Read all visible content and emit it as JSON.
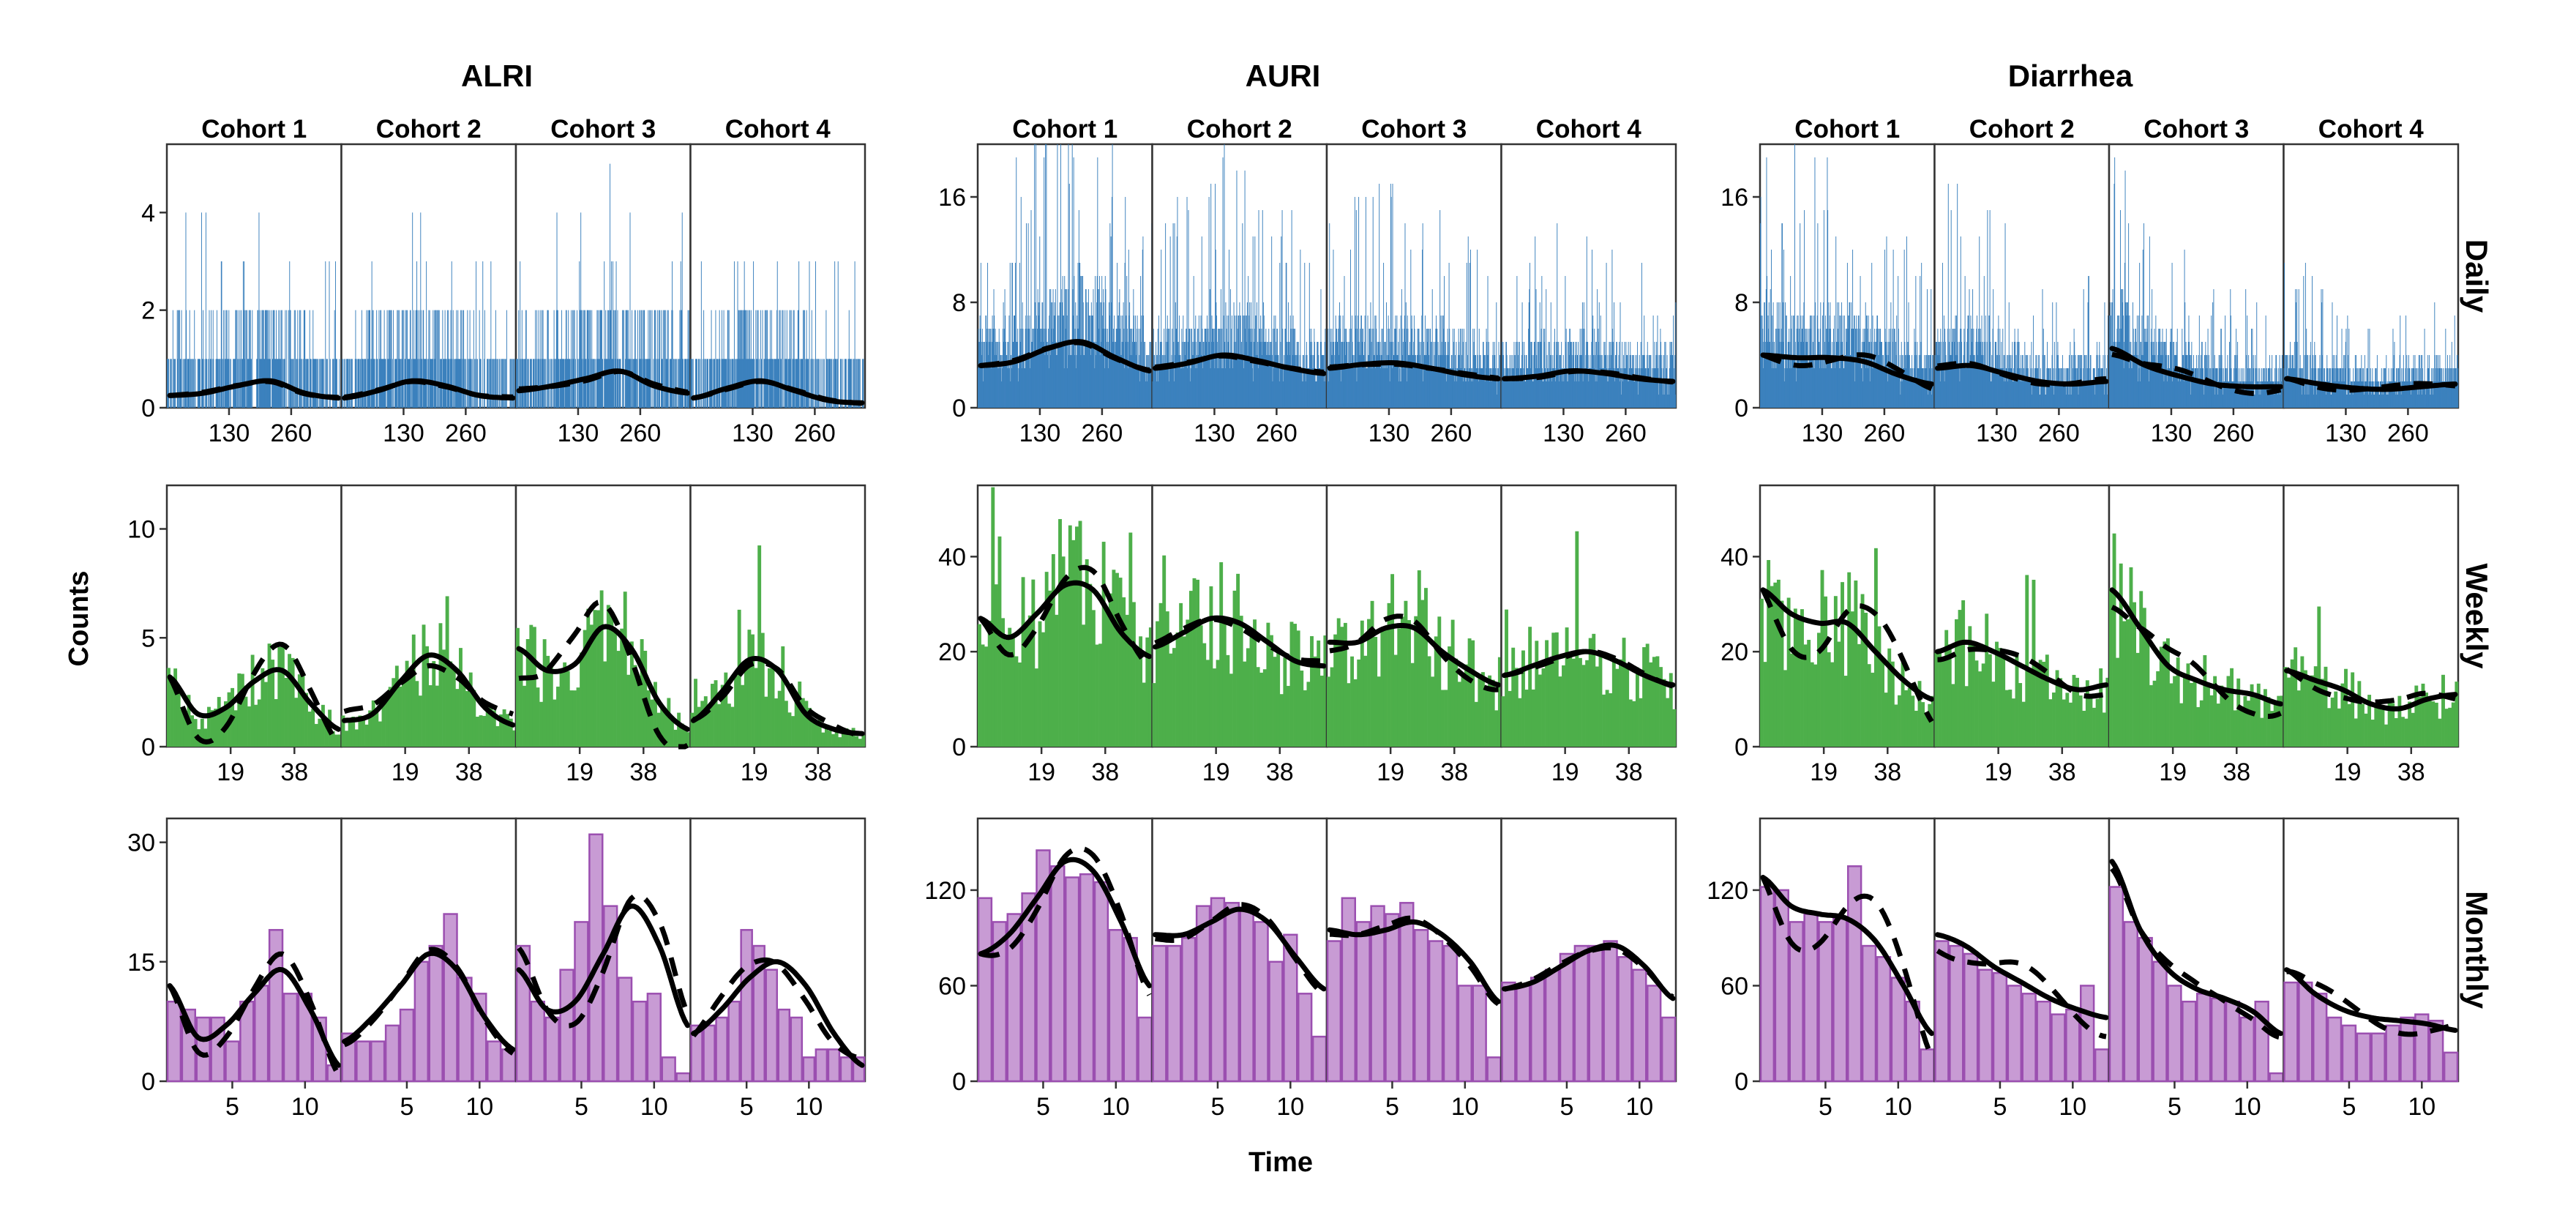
{
  "chart_data": {
    "type": "bar",
    "ylabel": "Counts",
    "xlabel": "Time",
    "outcomes": [
      "ALRI",
      "AURI",
      "Diarrhea"
    ],
    "cohorts": [
      "Cohort 1",
      "Cohort 2",
      "Cohort 3",
      "Cohort 4"
    ],
    "resolutions": [
      "Daily",
      "Weekly",
      "Monthly"
    ],
    "colors": {
      "Daily": "#3a80bd",
      "Weekly": "#4daf4a",
      "Monthly": "#c89bd4",
      "Monthly_edge": "#9b4fb0"
    },
    "legend": "none",
    "grid": false,
    "rows": {
      "Daily": {
        "x_ticks": [
          130,
          260
        ],
        "n_bins": 365,
        "y_ticks": {
          "ALRI": [
            0,
            2,
            4
          ],
          "AURI": [
            0,
            8,
            16
          ],
          "Diarrhea": [
            0,
            8,
            16
          ]
        },
        "ylim": {
          "ALRI": [
            0,
            5.4
          ],
          "AURI": [
            0,
            20
          ],
          "Diarrhea": [
            0,
            20
          ]
        },
        "level_knots": {
          "ALRI": [
            [
              0.25,
              0.3,
              0.45,
              0.55,
              0.3,
              0.2
            ],
            [
              0.2,
              0.35,
              0.55,
              0.45,
              0.25,
              0.2
            ],
            [
              0.35,
              0.45,
              0.6,
              0.75,
              0.45,
              0.3
            ],
            [
              0.2,
              0.4,
              0.55,
              0.35,
              0.15,
              0.1
            ]
          ],
          "AURI": [
            [
              3.2,
              3.5,
              4.5,
              5.0,
              3.8,
              2.8
            ],
            [
              3.0,
              3.4,
              4.0,
              3.6,
              3.0,
              2.6
            ],
            [
              3.0,
              3.3,
              3.4,
              3.0,
              2.5,
              2.2
            ],
            [
              2.2,
              2.4,
              2.8,
              2.6,
              2.2,
              2.0
            ]
          ],
          "Diarrhea": [
            [
              4.0,
              3.8,
              3.8,
              3.5,
              2.5,
              1.8
            ],
            [
              3.0,
              3.2,
              2.6,
              2.0,
              1.8,
              2.0
            ],
            [
              4.5,
              3.2,
              2.4,
              1.8,
              1.6,
              1.6
            ],
            [
              2.2,
              1.8,
              1.5,
              1.4,
              1.6,
              1.8
            ]
          ]
        },
        "dash_offsets": {
          "ALRI": [
            0.02,
            0.02,
            0.04,
            0.02
          ],
          "AURI": [
            0.1,
            0.1,
            0.1,
            0.1
          ],
          "Diarrhea": [
            -0.6,
            0.2,
            -0.5,
            0.3
          ]
        }
      },
      "Weekly": {
        "x_ticks": [
          19,
          38
        ],
        "n_bins": 52,
        "y_ticks": {
          "ALRI": [
            0,
            5,
            10
          ],
          "AURI": [
            0,
            20,
            40
          ],
          "Diarrhea": [
            0,
            20,
            40
          ]
        },
        "ylim": {
          "ALRI": [
            0,
            12
          ],
          "AURI": [
            0,
            55
          ],
          "Diarrhea": [
            0,
            55
          ]
        },
        "level_knots": {
          "ALRI": [
            [
              3.2,
              1.5,
              1.8,
              3.0,
              3.5,
              2.0,
              0.8
            ],
            [
              1.2,
              1.5,
              3.0,
              4.2,
              3.5,
              1.8,
              1.0
            ],
            [
              4.5,
              3.5,
              3.8,
              5.5,
              4.5,
              2.0,
              0.8
            ],
            [
              1.2,
              2.5,
              4.0,
              3.5,
              1.5,
              0.8,
              0.6
            ]
          ],
          "AURI": [
            [
              27,
              23,
              28,
              34,
              33,
              24,
              19
            ],
            [
              21,
              24,
              27,
              26,
              22,
              18,
              17
            ],
            [
              22,
              22,
              25,
              25,
              20,
              16,
              13
            ],
            [
              15,
              17,
              19,
              20,
              18,
              15,
              13
            ]
          ],
          "Diarrhea": [
            [
              33,
              28,
              26,
              26,
              20,
              14,
              10
            ],
            [
              20,
              22,
              20,
              17,
              14,
              12,
              13
            ],
            [
              33,
              25,
              17,
              14,
              12,
              11,
              9
            ],
            [
              16,
              14,
              12,
              9,
              8,
              10,
              11
            ]
          ]
        },
        "dash_offsets": {
          "ALRI": [
            -1.2,
            0.5,
            -1.5,
            0.3
          ],
          "AURI": [
            -4,
            1,
            -2,
            0.5
          ],
          "Diarrhea": [
            -8,
            -2,
            -4,
            2
          ]
        }
      },
      "Monthly": {
        "x_ticks": [
          5,
          10
        ],
        "n_bins": 12,
        "y_ticks": {
          "ALRI": [
            0,
            15,
            30
          ],
          "AURI": [
            0,
            60,
            120
          ],
          "Diarrhea": [
            0,
            60,
            120
          ]
        },
        "ylim": {
          "ALRI": [
            0,
            33
          ],
          "AURI": [
            0,
            165
          ],
          "Diarrhea": [
            0,
            165
          ]
        },
        "cohort_bins": {
          "ALRI": [
            12,
            12,
            12,
            14
          ],
          "AURI": [
            12,
            12,
            12,
            12
          ],
          "Diarrhea": [
            12,
            12,
            12,
            12
          ]
        },
        "values": {
          "ALRI": [
            [
              10,
              9,
              8,
              8,
              5,
              10,
              12,
              19,
              11,
              11,
              8,
              2
            ],
            [
              6,
              5,
              5,
              7,
              9,
              15,
              17,
              21,
              13,
              11,
              5,
              4
            ],
            [
              17,
              10,
              8,
              14,
              20,
              31,
              22,
              13,
              10,
              11,
              3,
              1
            ],
            [
              7,
              7,
              8,
              10,
              19,
              17,
              14,
              9,
              8,
              3,
              4,
              4,
              3,
              3
            ]
          ],
          "AURI": [
            [
              115,
              100,
              105,
              118,
              145,
              135,
              128,
              130,
              125,
              95,
              90,
              40
            ],
            [
              85,
              85,
              90,
              110,
              115,
              112,
              108,
              100,
              75,
              92,
              55,
              28
            ],
            [
              88,
              115,
              100,
              110,
              105,
              112,
              95,
              88,
              85,
              60,
              60,
              15
            ],
            [
              62,
              60,
              65,
              70,
              80,
              85,
              85,
              88,
              78,
              70,
              60,
              40
            ]
          ],
          "Diarrhea": [
            [
              122,
              120,
              100,
              105,
              100,
              102,
              135,
              85,
              78,
              65,
              50,
              20
            ],
            [
              88,
              85,
              80,
              70,
              68,
              60,
              55,
              50,
              42,
              45,
              60,
              20
            ],
            [
              122,
              100,
              90,
              75,
              60,
              50,
              55,
              52,
              50,
              40,
              50,
              5
            ],
            [
              62,
              62,
              55,
              40,
              35,
              30,
              30,
              35,
              40,
              42,
              38,
              18
            ]
          ]
        },
        "level_knots": {
          "ALRI": [
            [
              12,
              5.5,
              7,
              11,
              14,
              9,
              2
            ],
            [
              5,
              8,
              12,
              16,
              14,
              8,
              4
            ],
            [
              14,
              9,
              10,
              16,
              22,
              17,
              7
            ],
            [
              6,
              9,
              13,
              15,
              12,
              6,
              2
            ]
          ],
          "AURI": [
            [
              80,
              92,
              115,
              138,
              132,
              100,
              60
            ],
            [
              92,
              92,
              100,
              108,
              100,
              78,
              58
            ],
            [
              95,
              92,
              95,
              100,
              92,
              75,
              50
            ],
            [
              58,
              62,
              72,
              82,
              85,
              72,
              52
            ]
          ],
          "Diarrhea": [
            [
              128,
              110,
              105,
              102,
              88,
              60,
              30
            ],
            [
              92,
              85,
              72,
              62,
              52,
              45,
              40
            ],
            [
              138,
              95,
              70,
              58,
              52,
              44,
              30
            ],
            [
              70,
              55,
              45,
              40,
              38,
              36,
              32
            ]
          ]
        },
        "dash_offsets": {
          "ALRI": [
            -2,
            -0.5,
            3,
            -2
          ],
          "AURI": [
            -10,
            -3,
            -3,
            -2
          ],
          "Diarrhea": [
            -25,
            -12,
            -5,
            -8
          ]
        }
      }
    }
  }
}
